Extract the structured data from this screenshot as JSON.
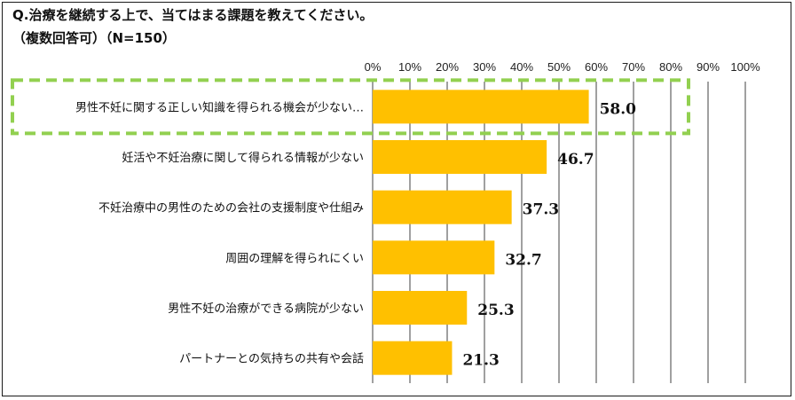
{
  "question": "Q.治療を継続する上で、当てはまる課題を教えてください。",
  "note": "（複数回答可）（N=150）",
  "colors": {
    "bar": "#FFC000",
    "highlight_box": "#92D050",
    "gridline": "#404040"
  },
  "chart_data": {
    "type": "bar",
    "orientation": "horizontal",
    "categories": [
      "男性不妊に関する正しい知識を得られる機会が少ない…",
      "妊活や不妊治療に関して得られる情報が少ない",
      "不妊治療中の男性のための会社の支援制度や仕組み",
      "周囲の理解を得られにくい",
      "男性不妊の治療ができる病院が少ない",
      "パートナーとの気持ちの共有や会話"
    ],
    "values": [
      58.0,
      46.7,
      37.3,
      32.7,
      25.3,
      21.3
    ],
    "value_labels": [
      "58.0",
      "46.7",
      "37.3",
      "32.7",
      "25.3",
      "21.3"
    ],
    "xlim": [
      0,
      100
    ],
    "x_ticks": [
      "0%",
      "10%",
      "20%",
      "30%",
      "40%",
      "50%",
      "60%",
      "70%",
      "80%",
      "90%",
      "100%"
    ],
    "grid": true,
    "legend": "none",
    "highlighted_category_index": 0
  }
}
